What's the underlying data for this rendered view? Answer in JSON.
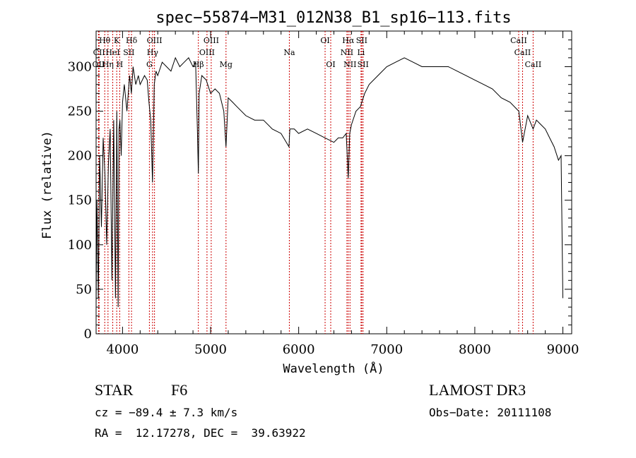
{
  "chart_data": {
    "type": "line",
    "title": "spec−55874−M31_012N38_B1_sp16−113.fits",
    "xlabel": "Wavelength (Å)",
    "ylabel": "Flux (relative)",
    "xlim": [
      3700,
      9100
    ],
    "ylim": [
      0,
      340
    ],
    "xticks": [
      4000,
      5000,
      6000,
      7000,
      8000,
      9000
    ],
    "yticks": [
      0,
      50,
      100,
      150,
      200,
      250,
      300
    ],
    "line_color": "#000000",
    "marker_color": "#cc0000",
    "series": [
      {
        "x": [
          3700,
          3710,
          3725,
          3740,
          3760,
          3780,
          3800,
          3820,
          3840,
          3860,
          3880,
          3900,
          3920,
          3935,
          3950,
          3960,
          3970,
          3985,
          4000,
          4020,
          4050,
          4080,
          4100,
          4120,
          4150,
          4180,
          4200,
          4250,
          4280,
          4300,
          4320,
          4340,
          4360,
          4380,
          4400,
          4450,
          4500,
          4550,
          4600,
          4650,
          4700,
          4750,
          4800,
          4830,
          4850,
          4861,
          4870,
          4900,
          4950,
          5000,
          5050,
          5100,
          5150,
          5175,
          5200,
          5250,
          5300,
          5400,
          5500,
          5600,
          5700,
          5800,
          5890,
          5900,
          5950,
          6000,
          6100,
          6200,
          6300,
          6400,
          6450,
          6500,
          6540,
          6563,
          6580,
          6600,
          6650,
          6700,
          6750,
          6800,
          6900,
          7000,
          7100,
          7200,
          7300,
          7400,
          7500,
          7600,
          7700,
          7800,
          7900,
          8000,
          8100,
          8200,
          8300,
          8400,
          8500,
          8542,
          8600,
          8662,
          8700,
          8800,
          8850,
          8900,
          8950,
          8980,
          9000
        ],
        "y": [
          30,
          150,
          40,
          200,
          120,
          220,
          180,
          100,
          190,
          230,
          60,
          240,
          40,
          250,
          30,
          230,
          240,
          200,
          260,
          280,
          250,
          290,
          270,
          300,
          280,
          290,
          280,
          290,
          285,
          260,
          240,
          170,
          280,
          295,
          290,
          305,
          300,
          295,
          310,
          300,
          305,
          310,
          300,
          305,
          230,
          180,
          270,
          290,
          285,
          270,
          275,
          270,
          250,
          210,
          265,
          260,
          255,
          245,
          240,
          240,
          230,
          225,
          210,
          230,
          230,
          225,
          230,
          225,
          220,
          215,
          220,
          220,
          225,
          175,
          225,
          235,
          250,
          255,
          270,
          280,
          290,
          300,
          305,
          310,
          305,
          300,
          300,
          300,
          300,
          295,
          290,
          285,
          280,
          275,
          265,
          260,
          250,
          215,
          245,
          230,
          240,
          230,
          220,
          210,
          195,
          200,
          40
        ]
      }
    ],
    "lines": [
      {
        "label": "Hθ",
        "x": 3798,
        "row": 1
      },
      {
        "label": "OII",
        "x": 3727,
        "row": 3
      },
      {
        "label": "CII",
        "x": 3734,
        "row": 2
      },
      {
        "label": "Hη",
        "x": 3835,
        "row": 3
      },
      {
        "label": "HeI",
        "x": 3889,
        "row": 2
      },
      {
        "label": "K",
        "x": 3934,
        "row": 1
      },
      {
        "label": "H",
        "x": 3968,
        "row": 3
      },
      {
        "label": "SII",
        "x": 4072,
        "row": 2
      },
      {
        "label": "Hδ",
        "x": 4102,
        "row": 1
      },
      {
        "label": "G",
        "x": 4305,
        "row": 3
      },
      {
        "label": "OIII",
        "x": 4363,
        "row": 1
      },
      {
        "label": "Hγ",
        "x": 4341,
        "row": 2
      },
      {
        "label": "Hβ",
        "x": 4861,
        "row": 3
      },
      {
        "label": "OIII",
        "x": 4959,
        "row": 2
      },
      {
        "label": "OIII",
        "x": 5007,
        "row": 1
      },
      {
        "label": "Mg",
        "x": 5175,
        "row": 3
      },
      {
        "label": "Na",
        "x": 5894,
        "row": 2
      },
      {
        "label": "OI",
        "x": 6300,
        "row": 1
      },
      {
        "label": "OI",
        "x": 6364,
        "row": 3
      },
      {
        "label": "Hα",
        "x": 6563,
        "row": 1
      },
      {
        "label": "NII",
        "x": 6548,
        "row": 2
      },
      {
        "label": "NII",
        "x": 6583,
        "row": 3
      },
      {
        "label": "SII",
        "x": 6716,
        "row": 1
      },
      {
        "label": "Li",
        "x": 6708,
        "row": 2
      },
      {
        "label": "SII",
        "x": 6731,
        "row": 3
      },
      {
        "label": "CaII",
        "x": 8498,
        "row": 1
      },
      {
        "label": "CaII",
        "x": 8542,
        "row": 2
      },
      {
        "label": "CaII",
        "x": 8662,
        "row": 3
      }
    ]
  },
  "info": {
    "class": "STAR",
    "subclass": "F6",
    "survey": "LAMOST DR3",
    "cz": "cz = −89.4 ± 7.3 km/s",
    "obsdate": "Obs−Date: 20111108",
    "radec": "RA =  12.17278, DEC =  39.63922"
  }
}
